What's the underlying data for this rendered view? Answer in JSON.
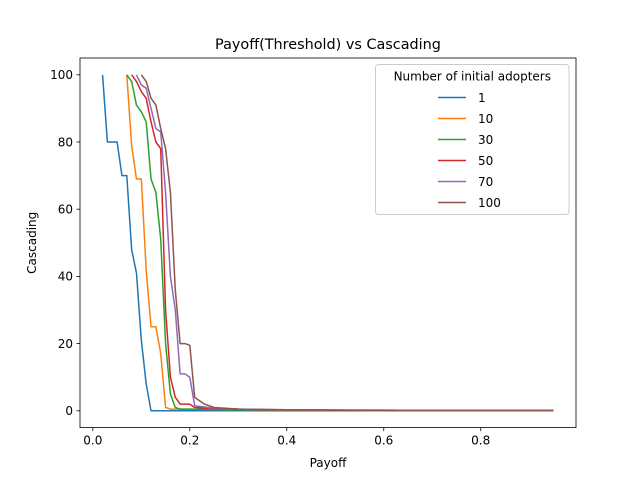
{
  "chart_data": {
    "type": "line",
    "title": "Payoff(Threshold) vs Cascading",
    "xlabel": "Payoff",
    "ylabel": "Cascading",
    "xlim": [
      -0.0265,
      0.9965
    ],
    "ylim": [
      -5,
      105
    ],
    "xticks": [
      0.0,
      0.2,
      0.4,
      0.6,
      0.8
    ],
    "xtick_labels": [
      "0.0",
      "0.2",
      "0.4",
      "0.6",
      "0.8"
    ],
    "yticks": [
      0,
      20,
      40,
      60,
      80,
      100
    ],
    "ytick_labels": [
      "0",
      "20",
      "40",
      "60",
      "80",
      "100"
    ],
    "grid": false,
    "legend": {
      "title": "Number of initial adopters",
      "placement": "upper right"
    },
    "series": [
      {
        "name": "1",
        "color": "#1f77b4",
        "x": [
          0.02,
          0.03,
          0.04,
          0.05,
          0.06,
          0.07,
          0.08,
          0.09,
          0.1,
          0.11,
          0.12,
          0.13,
          0.14,
          0.15,
          0.2,
          0.3,
          0.4,
          0.5,
          0.6,
          0.7,
          0.8,
          0.95
        ],
        "y": [
          100,
          80,
          80,
          80,
          70,
          70,
          48,
          41,
          21,
          8,
          0,
          0,
          0,
          0,
          0,
          0,
          0,
          0,
          0,
          0,
          0,
          0
        ]
      },
      {
        "name": "10",
        "color": "#ff7f0e",
        "x": [
          0.07,
          0.08,
          0.09,
          0.1,
          0.11,
          0.12,
          0.13,
          0.14,
          0.15,
          0.16,
          0.18,
          0.2,
          0.3,
          0.4,
          0.5,
          0.6,
          0.7,
          0.8,
          0.95
        ],
        "y": [
          100,
          79,
          69,
          69,
          42,
          25,
          25,
          17,
          1,
          0.5,
          0.5,
          0.5,
          0.3,
          0.2,
          0.2,
          0.1,
          0.1,
          0.1,
          0.1
        ]
      },
      {
        "name": "30",
        "color": "#2ca02c",
        "x": [
          0.07,
          0.08,
          0.09,
          0.1,
          0.11,
          0.12,
          0.13,
          0.14,
          0.15,
          0.16,
          0.17,
          0.18,
          0.2,
          0.3,
          0.4,
          0.5,
          0.6,
          0.7,
          0.8,
          0.95
        ],
        "y": [
          100,
          98,
          91,
          89,
          86,
          69,
          65,
          51,
          20,
          5,
          1,
          0.5,
          0.5,
          0.3,
          0.2,
          0.2,
          0.1,
          0.1,
          0.1,
          0.1
        ]
      },
      {
        "name": "50",
        "color": "#d62728",
        "x": [
          0.08,
          0.09,
          0.1,
          0.11,
          0.12,
          0.13,
          0.14,
          0.15,
          0.16,
          0.17,
          0.18,
          0.19,
          0.2,
          0.21,
          0.25,
          0.3,
          0.4,
          0.5,
          0.6,
          0.7,
          0.8,
          0.95
        ],
        "y": [
          100,
          98,
          95,
          93,
          86,
          80,
          78,
          30,
          10,
          4,
          2,
          2,
          2,
          1,
          0.7,
          0.5,
          0.3,
          0.2,
          0.2,
          0.1,
          0.1,
          0.1
        ]
      },
      {
        "name": "70",
        "color": "#9467bd",
        "x": [
          0.09,
          0.1,
          0.11,
          0.12,
          0.13,
          0.14,
          0.15,
          0.16,
          0.17,
          0.18,
          0.19,
          0.2,
          0.21,
          0.25,
          0.3,
          0.4,
          0.5,
          0.6,
          0.7,
          0.8,
          0.95
        ],
        "y": [
          100,
          97,
          96,
          90,
          84,
          83,
          65,
          40,
          30,
          11,
          11,
          10,
          1.5,
          0.8,
          0.5,
          0.3,
          0.2,
          0.2,
          0.1,
          0.1,
          0.1
        ]
      },
      {
        "name": "100",
        "color": "#8c564b",
        "x": [
          0.1,
          0.11,
          0.12,
          0.13,
          0.14,
          0.15,
          0.16,
          0.17,
          0.18,
          0.19,
          0.2,
          0.21,
          0.23,
          0.25,
          0.3,
          0.35,
          0.4,
          0.5,
          0.6,
          0.7,
          0.8,
          0.95
        ],
        "y": [
          100,
          98,
          93,
          91,
          84,
          78,
          65,
          36,
          20,
          20,
          19.5,
          4,
          2,
          1,
          0.5,
          0.3,
          0.2,
          0.2,
          0.1,
          0.1,
          0.1,
          0.1
        ]
      }
    ]
  }
}
